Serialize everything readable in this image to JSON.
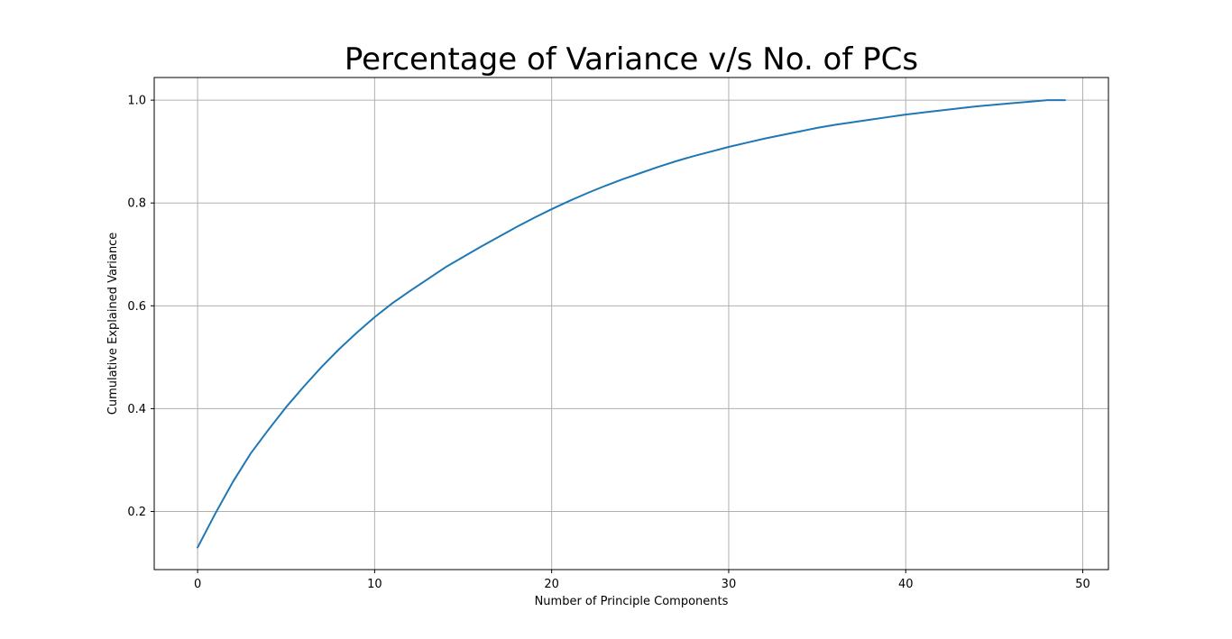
{
  "chart_data": {
    "type": "line",
    "title": "Percentage of Variance v/s No. of PCs",
    "xlabel": "Number of Principle Components",
    "ylabel": "Cumulative Explained Variance",
    "xlim": [
      -2.45,
      51.45
    ],
    "ylim": [
      0.087,
      1.044
    ],
    "xticks": [
      0,
      10,
      20,
      30,
      40,
      50
    ],
    "xtick_labels": [
      "0",
      "10",
      "20",
      "30",
      "40",
      "50"
    ],
    "yticks": [
      0.2,
      0.4,
      0.6,
      0.8,
      1.0
    ],
    "ytick_labels": [
      "0.2",
      "0.4",
      "0.6",
      "0.8",
      "1.0"
    ],
    "grid": true,
    "series": [
      {
        "color": "#1f77b4",
        "x": [
          0,
          1,
          2,
          3,
          4,
          5,
          6,
          7,
          8,
          9,
          10,
          11,
          12,
          13,
          14,
          15,
          16,
          17,
          18,
          19,
          20,
          21,
          22,
          23,
          24,
          25,
          26,
          27,
          28,
          29,
          30,
          31,
          32,
          33,
          34,
          35,
          36,
          37,
          38,
          39,
          40,
          41,
          42,
          43,
          44,
          45,
          46,
          47,
          48,
          49
        ],
        "y": [
          0.13,
          0.196,
          0.258,
          0.313,
          0.359,
          0.403,
          0.443,
          0.481,
          0.516,
          0.548,
          0.578,
          0.605,
          0.629,
          0.652,
          0.675,
          0.695,
          0.715,
          0.734,
          0.753,
          0.771,
          0.788,
          0.804,
          0.819,
          0.833,
          0.846,
          0.858,
          0.87,
          0.881,
          0.891,
          0.9,
          0.909,
          0.917,
          0.925,
          0.932,
          0.939,
          0.946,
          0.952,
          0.957,
          0.962,
          0.967,
          0.972,
          0.976,
          0.98,
          0.984,
          0.988,
          0.991,
          0.994,
          0.997,
          1.0,
          1.0
        ]
      }
    ]
  }
}
